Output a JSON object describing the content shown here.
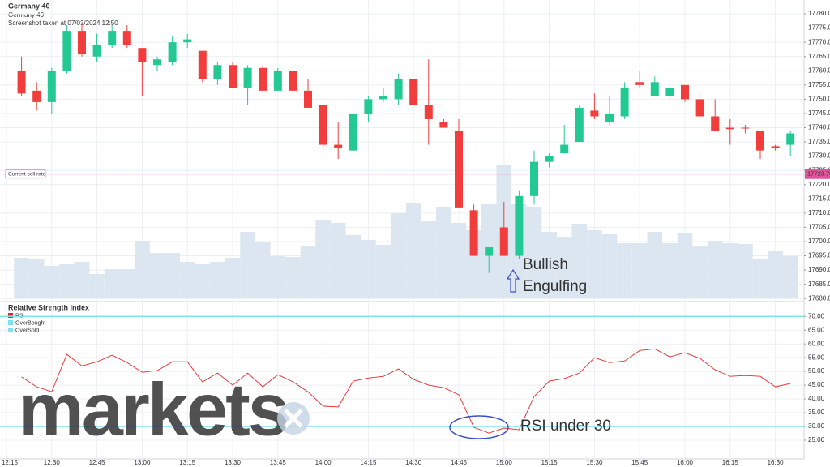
{
  "chart_data": [
    {
      "type": "candlestick",
      "title": "Germany 40",
      "subtitle": "Germany 40",
      "note": "Screenshot taken at 07/03/2024 12:50",
      "categories": [
        "12:15",
        null,
        null,
        "12:30",
        null,
        null,
        "12:45",
        null,
        null,
        "13:00",
        null,
        null,
        "13:15",
        null,
        null,
        "13:30",
        null,
        null,
        "13:45",
        null,
        null,
        "14:00",
        null,
        null,
        "14:15",
        null,
        null,
        "14:30",
        null,
        null,
        "14:45",
        null,
        null,
        "15:00",
        null,
        null,
        "15:15",
        null,
        null,
        "15:30",
        null,
        null,
        "15:45",
        null,
        null,
        "16:00",
        null,
        null,
        "16:15",
        null,
        null,
        "16:30",
        null
      ],
      "open": [
        null,
        17760,
        17753,
        17749,
        17760,
        17774,
        17765,
        17769,
        17774,
        17768,
        17762,
        17763,
        17770,
        17767,
        17757,
        17762,
        17754,
        17761,
        17753,
        17760,
        17753,
        17748,
        17734,
        17732,
        17745,
        17750,
        17750,
        17757,
        17748,
        17742,
        17739,
        17711,
        17695,
        17705,
        17695,
        17716,
        17728,
        17731,
        17735,
        17746,
        17742,
        17744,
        17756,
        17751,
        17751,
        17755,
        17750,
        17744,
        17740,
        17740,
        17739,
        17733.5,
        17734
      ],
      "high": [
        null,
        17765,
        17756,
        17761,
        17776,
        17777,
        17773,
        17776,
        17776,
        17768,
        17765,
        17772,
        17773,
        17767,
        17763,
        17763,
        17762,
        17762,
        17761,
        17760,
        17757,
        17748,
        17742,
        17745,
        17751,
        17754,
        17759,
        17757,
        17764,
        17743,
        17743,
        17713,
        17698,
        17714,
        17718,
        17732,
        17731,
        17741,
        17748,
        17752,
        17751,
        17756,
        17760,
        17758,
        17755,
        17755,
        17752,
        17750,
        17743,
        17741,
        17739,
        17734,
        17739
      ],
      "low": [
        null,
        17751,
        17746,
        17745,
        17759,
        17765,
        17763,
        17768,
        17768,
        17751,
        17760,
        17762,
        17768,
        17756,
        17755,
        17754,
        17748,
        17753,
        17753,
        17753,
        17747,
        17732,
        17729,
        17732,
        17742,
        17749,
        17748,
        17748,
        17734,
        17740,
        17712,
        17695,
        17689,
        17695,
        17694,
        17713,
        17726,
        17731,
        17735,
        17743,
        17741,
        17743,
        17754,
        17751,
        17750,
        17749,
        17743,
        17739,
        17734,
        17738,
        17729,
        17732,
        17730
      ],
      "close": [
        null,
        17752,
        17749,
        17760,
        17774,
        17766,
        17769,
        17774,
        17769,
        17763,
        17764,
        17770,
        17771,
        17757,
        17762,
        17754,
        17761,
        17753,
        17760,
        17753,
        17747,
        17734,
        17733,
        17745,
        17750,
        17751,
        17757,
        17748,
        17743,
        17740,
        17712,
        17695,
        17698,
        17695,
        17716,
        17728,
        17730,
        17734,
        17747,
        17744,
        17745,
        17754,
        17755,
        17756,
        17754,
        17750,
        17744,
        17739,
        17739.5,
        17739.8,
        17732,
        17733,
        17738
      ],
      "volume": [
        null,
        50,
        48,
        40,
        42,
        45,
        30,
        36,
        36,
        71,
        56,
        56,
        45,
        42,
        45,
        50,
        82,
        69,
        52,
        51,
        65,
        97,
        93,
        78,
        72,
        66,
        105,
        118,
        95,
        113,
        93,
        84,
        116,
        164,
        116,
        113,
        82,
        76,
        92,
        84,
        79,
        68,
        68,
        82,
        68,
        80,
        65,
        71,
        68,
        67,
        48,
        58,
        52
      ],
      "up_color": "#22c993",
      "down_color": "#f23d3d",
      "volume_color": "#dbe6f1",
      "ylim": [
        17679.5,
        17782
      ],
      "yticks": [
        {
          "value": 17680,
          "label": "17680.00"
        },
        {
          "value": 17685,
          "label": "17685.00"
        },
        {
          "value": 17690,
          "label": "17690.00"
        },
        {
          "value": 17695,
          "label": "17695.00"
        },
        {
          "value": 17700,
          "label": "17700.00"
        },
        {
          "value": 17705,
          "label": "17705.00"
        },
        {
          "value": 17710,
          "label": "17710.00"
        },
        {
          "value": 17715,
          "label": "17715.00"
        },
        {
          "value": 17720,
          "label": "17720.00"
        },
        {
          "value": 17725,
          "label": "17725.00"
        },
        {
          "value": 17730,
          "label": "17730.00"
        },
        {
          "value": 17735,
          "label": "17735.00"
        },
        {
          "value": 17740,
          "label": "17740.00"
        },
        {
          "value": 17745,
          "label": "17745.00"
        },
        {
          "value": 17750,
          "label": "17750.00"
        },
        {
          "value": 17755,
          "label": "17755.00"
        },
        {
          "value": 17760,
          "label": "17760.00"
        },
        {
          "value": 17765,
          "label": "17765.00"
        },
        {
          "value": 17770,
          "label": "17770.00"
        },
        {
          "value": 17775,
          "label": "17775.00"
        },
        {
          "value": 17780,
          "label": "17780.00"
        }
      ],
      "grid": true,
      "current_rate": {
        "label": "Current sell rate",
        "value": 17723.7,
        "value_label": "17723.70",
        "color": "#e0559a"
      },
      "annotation": [
        "Bullish",
        "Engulfing"
      ]
    },
    {
      "type": "line",
      "title": "Relative Strength Index",
      "series": [
        {
          "name": "RSI",
          "color": "#e8272b",
          "values": [
            null,
            48,
            44.4,
            42.6,
            56.2,
            52,
            53.5,
            55.9,
            53.2,
            49.7,
            50.3,
            53.5,
            53.5,
            46.2,
            49.4,
            45,
            49.4,
            44.4,
            48.8,
            46.2,
            42.6,
            37.4,
            37.1,
            46.5,
            47.6,
            48.2,
            50.9,
            47.1,
            45,
            44.1,
            41.5,
            29.7,
            27.6,
            29.4,
            28.8,
            40.9,
            46.5,
            47.4,
            49.4,
            55,
            53.2,
            53.8,
            57.6,
            58.2,
            55.3,
            56.8,
            54.7,
            50.6,
            48.2,
            48.5,
            48.2,
            44.4,
            45.6
          ]
        },
        {
          "name": "OverBought",
          "color": "#7fe3ee",
          "level": 70
        },
        {
          "name": "OverSold",
          "color": "#7fe3ee",
          "level": 30
        }
      ],
      "ylim": [
        18.5,
        74.5
      ],
      "yticks": [
        {
          "value": 25,
          "label": "25.00"
        },
        {
          "value": 30,
          "label": "30.00"
        },
        {
          "value": 35,
          "label": "35.00"
        },
        {
          "value": 40,
          "label": "40.00"
        },
        {
          "value": 45,
          "label": "45.00"
        },
        {
          "value": 50,
          "label": "50.00"
        },
        {
          "value": 55,
          "label": "55.00"
        },
        {
          "value": 60,
          "label": "60.00"
        },
        {
          "value": 65,
          "label": "65.00"
        },
        {
          "value": 70,
          "label": "70.00"
        }
      ],
      "grid": true,
      "annotation": "RSI under 30"
    }
  ],
  "watermark": "markets"
}
